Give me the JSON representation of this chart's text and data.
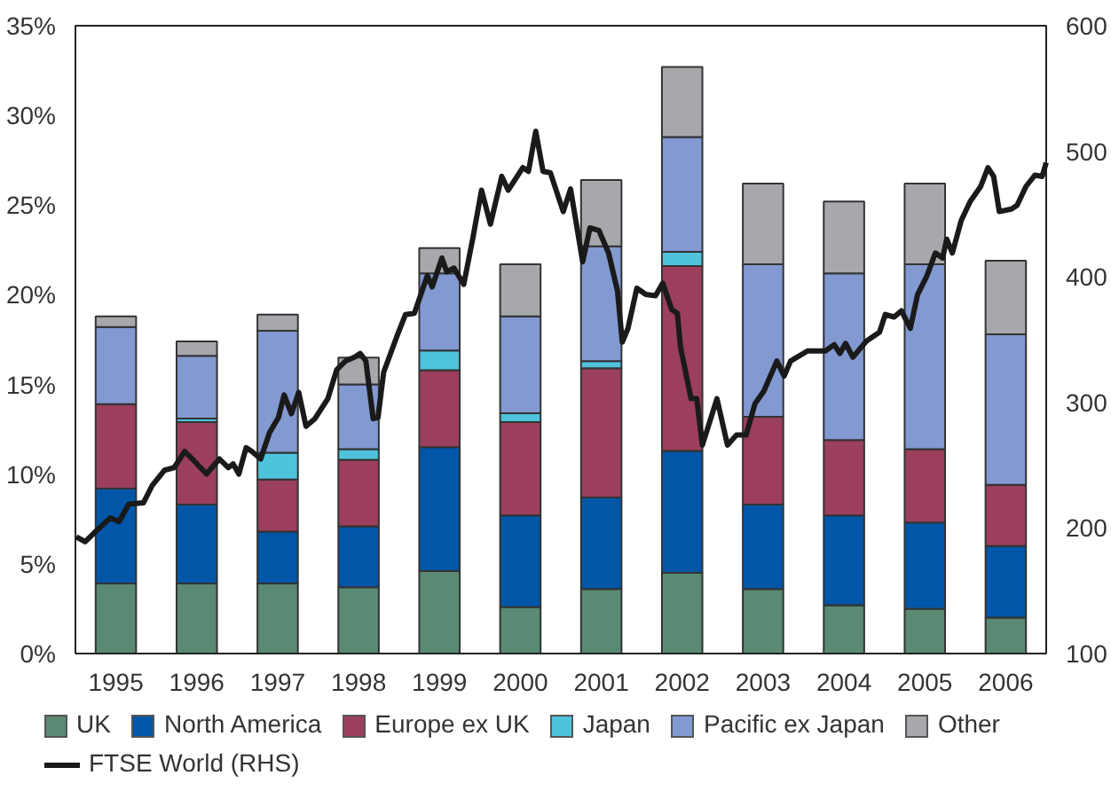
{
  "chart_data": {
    "type": "bar",
    "stacked": true,
    "x": [
      1995,
      1996,
      1997,
      1998,
      1999,
      2000,
      2001,
      2002,
      2003,
      2004,
      2005,
      2006
    ],
    "xlim": [
      1994.5,
      2006.5
    ],
    "xticks": [
      1995,
      1996,
      1997,
      1998,
      1999,
      2000,
      2001,
      2002,
      2003,
      2004,
      2005,
      2006
    ],
    "ylim": [
      0,
      35
    ],
    "yticks": [
      {
        "value": 0,
        "label": "0%"
      },
      {
        "value": 5,
        "label": "5%"
      },
      {
        "value": 10,
        "label": "10%"
      },
      {
        "value": 15,
        "label": "15%"
      },
      {
        "value": 20,
        "label": "20%"
      },
      {
        "value": 25,
        "label": "25%"
      },
      {
        "value": 30,
        "label": "30%"
      },
      {
        "value": 35,
        "label": "35%"
      }
    ],
    "y2lim": [
      100,
      600
    ],
    "y2ticks": [
      100,
      200,
      300,
      400,
      500,
      600
    ],
    "grid": false,
    "legend": "bottom",
    "series": [
      {
        "name": "UK",
        "color": "#5a8a73",
        "values": [
          3.9,
          3.9,
          3.9,
          3.7,
          4.6,
          2.6,
          3.6,
          4.5,
          3.6,
          2.7,
          2.5,
          2.0
        ]
      },
      {
        "name": "North America",
        "color": "#0057a8",
        "values": [
          5.3,
          4.4,
          2.9,
          3.4,
          6.9,
          5.1,
          5.1,
          6.8,
          4.7,
          5.0,
          4.8,
          4.0
        ]
      },
      {
        "name": "Europe ex UK",
        "color": "#9b3f5c",
        "values": [
          4.7,
          4.6,
          2.9,
          3.7,
          4.3,
          5.2,
          7.2,
          10.3,
          4.9,
          4.2,
          4.1,
          3.4
        ]
      },
      {
        "name": "Japan",
        "color": "#4fc3dc",
        "values": [
          0,
          0.2,
          1.5,
          0.6,
          1.1,
          0.5,
          0.4,
          0.8,
          0,
          0,
          0,
          0
        ]
      },
      {
        "name": "Pacific ex Japan",
        "color": "#8299d1",
        "values": [
          4.3,
          3.5,
          6.8,
          3.6,
          4.3,
          5.4,
          6.4,
          6.4,
          8.5,
          9.3,
          10.3,
          8.4
        ]
      },
      {
        "name": "Other",
        "color": "#a7a8ab",
        "values": [
          0.6,
          0.8,
          0.9,
          1.5,
          1.4,
          2.9,
          3.7,
          3.9,
          4.5,
          4.0,
          4.5,
          4.1
        ]
      },
      {
        "name": "FTSE World (RHS)",
        "type": "line",
        "axis": "y2",
        "color": "#1a1a1a",
        "line_style": "solid",
        "x": [
          1994.51,
          1994.62,
          1994.73,
          1994.93,
          1995.04,
          1995.16,
          1995.34,
          1995.45,
          1995.6,
          1995.72,
          1995.85,
          1995.96,
          1996.12,
          1996.28,
          1996.39,
          1996.45,
          1996.52,
          1996.61,
          1996.68,
          1996.79,
          1996.9,
          1997.01,
          1997.08,
          1997.17,
          1997.26,
          1997.35,
          1997.46,
          1997.62,
          1997.73,
          1997.84,
          1997.95,
          1998.02,
          1998.09,
          1998.18,
          1998.24,
          1998.31,
          1998.47,
          1998.58,
          1998.69,
          1998.85,
          1998.91,
          1999.03,
          1999.09,
          1999.18,
          1999.3,
          1999.41,
          1999.52,
          1999.63,
          1999.77,
          1999.85,
          2000.03,
          2000.1,
          2000.19,
          2000.28,
          2000.37,
          2000.53,
          2000.62,
          2000.77,
          2000.86,
          2000.97,
          2001.09,
          2001.2,
          2001.26,
          2001.33,
          2001.44,
          2001.55,
          2001.67,
          2001.76,
          2001.87,
          2001.94,
          2001.98,
          2002.11,
          2002.18,
          2002.25,
          2002.43,
          2002.56,
          2002.67,
          2002.79,
          2002.9,
          2003.01,
          2003.17,
          2003.26,
          2003.34,
          2003.55,
          2003.77,
          2003.88,
          2003.95,
          2004.02,
          2004.11,
          2004.28,
          2004.44,
          2004.51,
          2004.62,
          2004.71,
          2004.82,
          2004.91,
          2005.02,
          2005.13,
          2005.22,
          2005.27,
          2005.34,
          2005.45,
          2005.56,
          2005.69,
          2005.78,
          2005.85,
          2005.92,
          2006.07,
          2006.14,
          2006.25,
          2006.36,
          2006.45,
          2006.5
        ],
        "values": [
          193,
          189,
          196,
          208,
          205,
          219,
          220,
          234,
          246,
          248,
          261,
          254,
          243,
          255,
          248,
          251,
          243,
          264,
          261,
          255,
          276,
          288,
          306,
          291,
          308,
          281,
          287,
          303,
          326,
          333,
          336,
          339,
          333,
          287,
          288,
          324,
          352,
          370,
          371,
          401,
          392,
          415,
          404,
          407,
          394,
          430,
          469,
          442,
          480,
          469,
          487,
          484,
          516,
          484,
          483,
          452,
          470,
          412,
          439,
          437,
          419,
          389,
          348,
          359,
          391,
          386,
          385,
          395,
          374,
          371,
          344,
          303,
          303,
          266,
          303,
          266,
          274,
          274,
          299,
          309,
          333,
          321,
          333,
          341,
          341,
          346,
          339,
          347,
          336,
          349,
          356,
          370,
          368,
          373,
          359,
          386,
          400,
          419,
          415,
          430,
          419,
          445,
          460,
          472,
          487,
          480,
          452,
          454,
          457,
          472,
          481,
          480,
          491
        ]
      }
    ]
  }
}
